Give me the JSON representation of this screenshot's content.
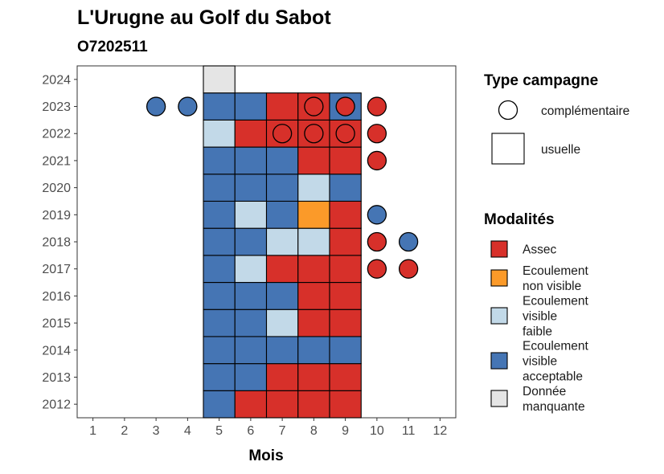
{
  "chart_data": {
    "type": "heatmap",
    "title": "L'Urugne au Golf du Sabot",
    "subtitle": "O7202511",
    "xlabel": "Mois",
    "ylabel": "",
    "x_ticks": [
      "1",
      "2",
      "3",
      "4",
      "5",
      "6",
      "7",
      "8",
      "9",
      "10",
      "11",
      "12"
    ],
    "y_ticks": [
      "2012",
      "2013",
      "2014",
      "2015",
      "2016",
      "2017",
      "2018",
      "2019",
      "2020",
      "2021",
      "2022",
      "2023",
      "2024"
    ],
    "xlim": [
      0.5,
      12.5
    ],
    "ylim": [
      2011.5,
      2024.5
    ],
    "colors": {
      "assec": "#d7302a",
      "ecoulement_non_visible": "#fb9a29",
      "ecoulement_visible_faible": "#c2d9e8",
      "ecoulement_visible_acceptable": "#4575b4",
      "donnee_manquante": "#e5e5e5"
    },
    "usuelle": [
      {
        "year": 2012,
        "month": 5,
        "cat": "ecoulement_visible_acceptable"
      },
      {
        "year": 2012,
        "month": 6,
        "cat": "assec"
      },
      {
        "year": 2012,
        "month": 7,
        "cat": "assec"
      },
      {
        "year": 2012,
        "month": 8,
        "cat": "assec"
      },
      {
        "year": 2012,
        "month": 9,
        "cat": "assec"
      },
      {
        "year": 2013,
        "month": 5,
        "cat": "ecoulement_visible_acceptable"
      },
      {
        "year": 2013,
        "month": 6,
        "cat": "ecoulement_visible_acceptable"
      },
      {
        "year": 2013,
        "month": 7,
        "cat": "assec"
      },
      {
        "year": 2013,
        "month": 8,
        "cat": "assec"
      },
      {
        "year": 2013,
        "month": 9,
        "cat": "assec"
      },
      {
        "year": 2014,
        "month": 5,
        "cat": "ecoulement_visible_acceptable"
      },
      {
        "year": 2014,
        "month": 6,
        "cat": "ecoulement_visible_acceptable"
      },
      {
        "year": 2014,
        "month": 7,
        "cat": "ecoulement_visible_acceptable"
      },
      {
        "year": 2014,
        "month": 8,
        "cat": "ecoulement_visible_acceptable"
      },
      {
        "year": 2014,
        "month": 9,
        "cat": "ecoulement_visible_acceptable"
      },
      {
        "year": 2015,
        "month": 5,
        "cat": "ecoulement_visible_acceptable"
      },
      {
        "year": 2015,
        "month": 6,
        "cat": "ecoulement_visible_acceptable"
      },
      {
        "year": 2015,
        "month": 7,
        "cat": "ecoulement_visible_faible"
      },
      {
        "year": 2015,
        "month": 8,
        "cat": "assec"
      },
      {
        "year": 2015,
        "month": 9,
        "cat": "assec"
      },
      {
        "year": 2016,
        "month": 5,
        "cat": "ecoulement_visible_acceptable"
      },
      {
        "year": 2016,
        "month": 6,
        "cat": "ecoulement_visible_acceptable"
      },
      {
        "year": 2016,
        "month": 7,
        "cat": "ecoulement_visible_acceptable"
      },
      {
        "year": 2016,
        "month": 8,
        "cat": "assec"
      },
      {
        "year": 2016,
        "month": 9,
        "cat": "assec"
      },
      {
        "year": 2017,
        "month": 5,
        "cat": "ecoulement_visible_acceptable"
      },
      {
        "year": 2017,
        "month": 6,
        "cat": "ecoulement_visible_faible"
      },
      {
        "year": 2017,
        "month": 7,
        "cat": "assec"
      },
      {
        "year": 2017,
        "month": 8,
        "cat": "assec"
      },
      {
        "year": 2017,
        "month": 9,
        "cat": "assec"
      },
      {
        "year": 2018,
        "month": 5,
        "cat": "ecoulement_visible_acceptable"
      },
      {
        "year": 2018,
        "month": 6,
        "cat": "ecoulement_visible_acceptable"
      },
      {
        "year": 2018,
        "month": 7,
        "cat": "ecoulement_visible_faible"
      },
      {
        "year": 2018,
        "month": 8,
        "cat": "ecoulement_visible_faible"
      },
      {
        "year": 2018,
        "month": 9,
        "cat": "assec"
      },
      {
        "year": 2019,
        "month": 5,
        "cat": "ecoulement_visible_acceptable"
      },
      {
        "year": 2019,
        "month": 6,
        "cat": "ecoulement_visible_faible"
      },
      {
        "year": 2019,
        "month": 7,
        "cat": "ecoulement_visible_acceptable"
      },
      {
        "year": 2019,
        "month": 8,
        "cat": "ecoulement_non_visible"
      },
      {
        "year": 2019,
        "month": 9,
        "cat": "assec"
      },
      {
        "year": 2020,
        "month": 5,
        "cat": "ecoulement_visible_acceptable"
      },
      {
        "year": 2020,
        "month": 6,
        "cat": "ecoulement_visible_acceptable"
      },
      {
        "year": 2020,
        "month": 7,
        "cat": "ecoulement_visible_acceptable"
      },
      {
        "year": 2020,
        "month": 8,
        "cat": "ecoulement_visible_faible"
      },
      {
        "year": 2020,
        "month": 9,
        "cat": "ecoulement_visible_acceptable"
      },
      {
        "year": 2021,
        "month": 5,
        "cat": "ecoulement_visible_acceptable"
      },
      {
        "year": 2021,
        "month": 6,
        "cat": "ecoulement_visible_acceptable"
      },
      {
        "year": 2021,
        "month": 7,
        "cat": "ecoulement_visible_acceptable"
      },
      {
        "year": 2021,
        "month": 8,
        "cat": "assec"
      },
      {
        "year": 2021,
        "month": 9,
        "cat": "assec"
      },
      {
        "year": 2022,
        "month": 5,
        "cat": "ecoulement_visible_faible"
      },
      {
        "year": 2022,
        "month": 6,
        "cat": "assec"
      },
      {
        "year": 2022,
        "month": 7,
        "cat": "assec"
      },
      {
        "year": 2022,
        "month": 8,
        "cat": "assec"
      },
      {
        "year": 2022,
        "month": 9,
        "cat": "assec"
      },
      {
        "year": 2023,
        "month": 5,
        "cat": "ecoulement_visible_acceptable"
      },
      {
        "year": 2023,
        "month": 6,
        "cat": "ecoulement_visible_acceptable"
      },
      {
        "year": 2023,
        "month": 7,
        "cat": "assec"
      },
      {
        "year": 2023,
        "month": 8,
        "cat": "assec"
      },
      {
        "year": 2023,
        "month": 9,
        "cat": "ecoulement_visible_acceptable"
      },
      {
        "year": 2024,
        "month": 5,
        "cat": "donnee_manquante"
      }
    ],
    "complementaire": [
      {
        "year": 2017,
        "month": 10,
        "cat": "assec"
      },
      {
        "year": 2017,
        "month": 11,
        "cat": "assec"
      },
      {
        "year": 2018,
        "month": 10,
        "cat": "assec"
      },
      {
        "year": 2018,
        "month": 11,
        "cat": "ecoulement_visible_acceptable"
      },
      {
        "year": 2019,
        "month": 10,
        "cat": "ecoulement_visible_acceptable"
      },
      {
        "year": 2021,
        "month": 10,
        "cat": "assec"
      },
      {
        "year": 2022,
        "month": 7,
        "cat": "assec"
      },
      {
        "year": 2022,
        "month": 8,
        "cat": "assec"
      },
      {
        "year": 2022,
        "month": 9,
        "cat": "assec"
      },
      {
        "year": 2022,
        "month": 10,
        "cat": "assec"
      },
      {
        "year": 2023,
        "month": 3,
        "cat": "ecoulement_visible_acceptable"
      },
      {
        "year": 2023,
        "month": 4,
        "cat": "ecoulement_visible_acceptable"
      },
      {
        "year": 2023,
        "month": 8,
        "cat": "assec"
      },
      {
        "year": 2023,
        "month": 9,
        "cat": "assec"
      },
      {
        "year": 2023,
        "month": 10,
        "cat": "assec"
      }
    ],
    "legend": {
      "type_title": "Type campagne",
      "type_entries": [
        {
          "key": "complementaire",
          "lines": [
            "complémentaire"
          ]
        },
        {
          "key": "usuelle",
          "lines": [
            "usuelle"
          ]
        }
      ],
      "modal_title": "Modalités",
      "modal_entries": [
        {
          "key": "assec",
          "lines": [
            "Assec"
          ]
        },
        {
          "key": "ecoulement_non_visible",
          "lines": [
            "Ecoulement",
            "non visible"
          ]
        },
        {
          "key": "ecoulement_visible_faible",
          "lines": [
            "Ecoulement",
            "visible",
            "faible"
          ]
        },
        {
          "key": "ecoulement_visible_acceptable",
          "lines": [
            "Ecoulement",
            "visible",
            "acceptable"
          ]
        },
        {
          "key": "donnee_manquante",
          "lines": [
            "Donnée",
            "manquante"
          ]
        }
      ]
    }
  }
}
